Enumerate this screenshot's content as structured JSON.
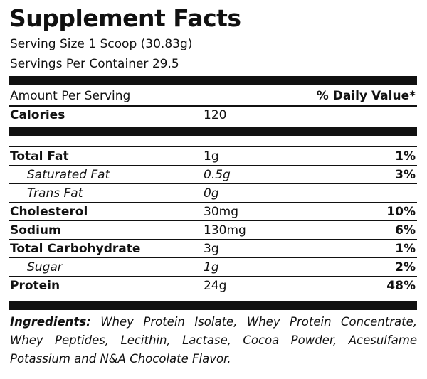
{
  "title": "Supplement Facts",
  "serving_size": "Serving Size 1 Scoop (30.83g)",
  "servings_per_container": "Servings Per Container 29.5",
  "header": {
    "amount": "Amount Per Serving",
    "daily_value": "% Daily Value*"
  },
  "calories": {
    "label": "Calories",
    "value": "120"
  },
  "rows": [
    {
      "name": "Total Fat",
      "amount": "1g",
      "dv": "1%"
    },
    {
      "name": "Saturated Fat",
      "amount": "0.5g",
      "dv": "3%"
    },
    {
      "name": "Trans Fat",
      "amount": "0g"
    },
    {
      "name": "Cholesterol",
      "amount": "30mg",
      "dv": "10%"
    },
    {
      "name": "Sodium",
      "amount": "130mg",
      "dv": "6%"
    },
    {
      "name": "Total Carbohydrate",
      "amount": "3g",
      "dv": "1%"
    },
    {
      "name": "Sugar",
      "amount": "1g",
      "dv": "2%"
    },
    {
      "name": "Protein",
      "amount": "24g",
      "dv": "48%"
    }
  ],
  "ingredients": {
    "label": "Ingredients:",
    "text": "Whey Protein Isolate, Whey Protein Concentrate, Whey Peptides, Lecithin, Lactase, Cocoa Powder, Acesulfame Potassium and N&A Chocolate Flavor."
  }
}
